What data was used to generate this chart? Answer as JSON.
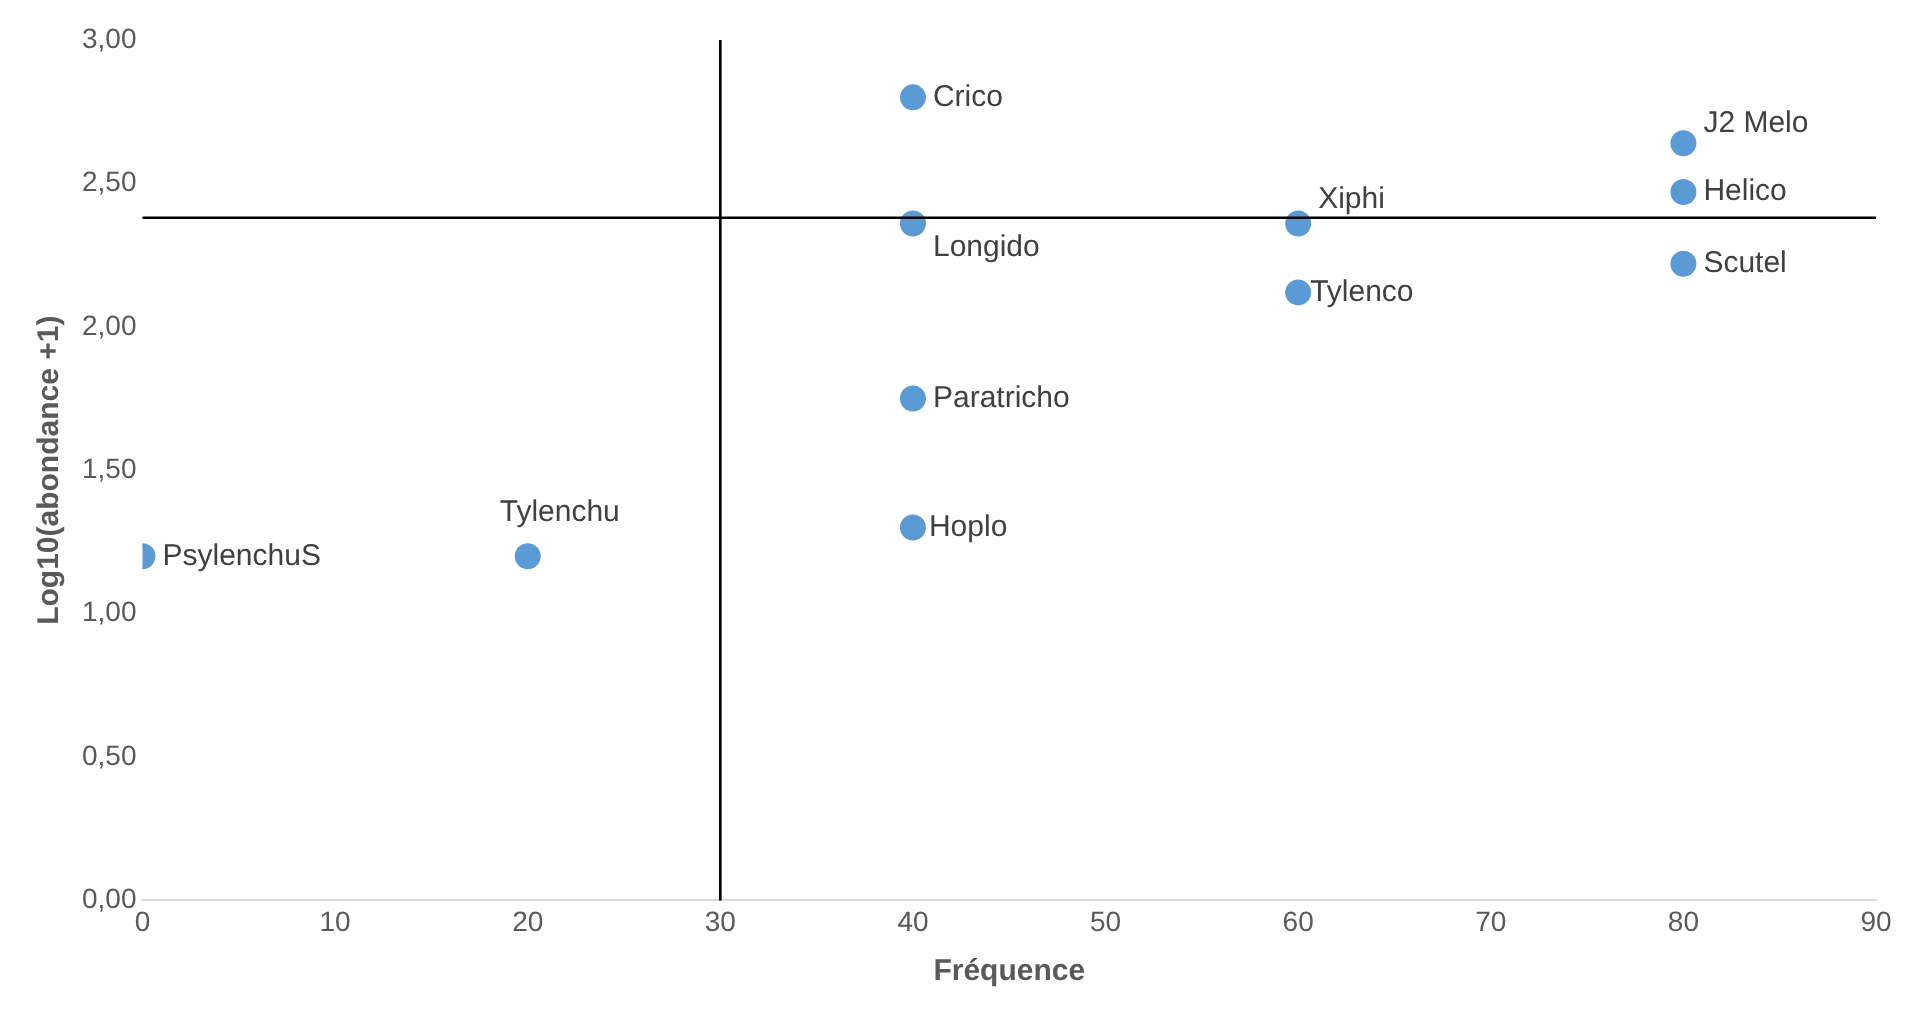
{
  "chart_data": {
    "type": "scatter",
    "xlabel": "Fréquence",
    "ylabel": "Log10(abondance +1)",
    "x": [
      0,
      20,
      40,
      40,
      40,
      40,
      60,
      60,
      80,
      80,
      80
    ],
    "series": [
      {
        "color": "#5b9bd5",
        "values": [
          1.2,
          1.2,
          2.8,
          2.36,
          1.75,
          1.3,
          2.36,
          2.12,
          2.64,
          2.47,
          2.22
        ]
      }
    ],
    "annotations": [
      {
        "text": "PsylenchuS",
        "x": 0,
        "y": 1.2
      },
      {
        "text": "Tylenchu",
        "x": 20,
        "y": 1.2
      },
      {
        "text": "Crico",
        "x": 40,
        "y": 2.8
      },
      {
        "text": "Longido",
        "x": 40,
        "y": 2.36
      },
      {
        "text": "Paratricho",
        "x": 40,
        "y": 1.75
      },
      {
        "text": "Hoplo",
        "x": 40,
        "y": 1.3
      },
      {
        "text": "Xiphi",
        "x": 60,
        "y": 2.36
      },
      {
        "text": "Tylenco",
        "x": 60,
        "y": 2.12
      },
      {
        "text": "J2 Melo",
        "x": 80,
        "y": 2.64
      },
      {
        "text": "Helico",
        "x": 80,
        "y": 2.47
      },
      {
        "text": "Scutel",
        "x": 80,
        "y": 2.22
      }
    ],
    "ref_lines": [
      {
        "axis": "x",
        "value": 30,
        "color": "#000000"
      },
      {
        "axis": "y",
        "value": 2.38,
        "color": "#000000"
      }
    ],
    "xlim": [
      0,
      90
    ],
    "xticks": [
      0,
      10,
      20,
      30,
      40,
      50,
      60,
      70,
      80,
      90
    ],
    "ylim": [
      0,
      3
    ],
    "yticks": [
      {
        "value": 0,
        "label": "0,00"
      },
      {
        "value": 0.5,
        "label": "0,50"
      },
      {
        "value": 1,
        "label": "1,00"
      },
      {
        "value": 1.5,
        "label": "1,50"
      },
      {
        "value": 2,
        "label": "2,00"
      },
      {
        "value": 2.5,
        "label": "2,50"
      },
      {
        "value": 3,
        "label": "3,00"
      }
    ],
    "grid": false,
    "legend": false,
    "marker": "circle"
  }
}
